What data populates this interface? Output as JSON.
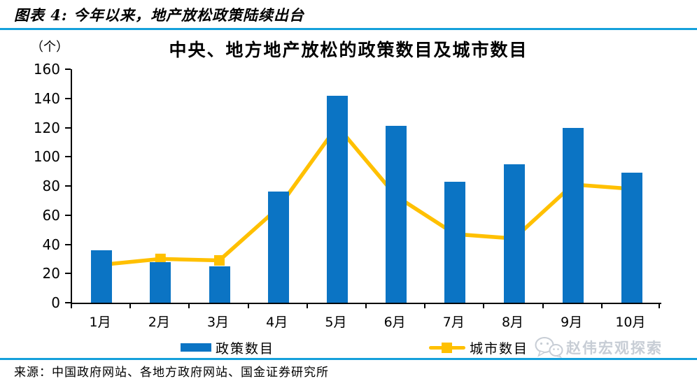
{
  "header": {
    "label": "图表 4: 今年以来，地产放松政策陆续出台"
  },
  "chart_data": {
    "type": "bar",
    "subtype": "bar+line combo",
    "title": "中央、地方地产放松的政策数目及城市数目",
    "unit_label": "（个）",
    "categories": [
      "1月",
      "2月",
      "3月",
      "4月",
      "5月",
      "6月",
      "7月",
      "8月",
      "9月",
      "10月"
    ],
    "series": [
      {
        "name": "政策数目",
        "type": "bar",
        "color": "#0B74C4",
        "values": [
          36,
          28,
          25,
          76,
          142,
          121,
          83,
          95,
          120,
          89
        ]
      },
      {
        "name": "城市数目",
        "type": "line",
        "color": "#FFC000",
        "marker": "square",
        "values": [
          26,
          30,
          29,
          65,
          121,
          73,
          47,
          44,
          81,
          78
        ]
      }
    ],
    "xlabel": "",
    "ylabel": "（个）",
    "ylim": [
      0,
      160
    ],
    "y_ticks": [
      0,
      20,
      40,
      60,
      80,
      100,
      120,
      140,
      160
    ],
    "grid": false,
    "legend_position": "bottom"
  },
  "legend": {
    "bar_label": "政策数目",
    "line_label": "城市数目"
  },
  "watermark": {
    "text": "赵伟宏观探索",
    "icon": "wechat-icon"
  },
  "source": {
    "text": "来源：中国政府网站、各地方政府网站、国金证券研究所"
  },
  "colors": {
    "accent_rule": "#15A0DB",
    "bar": "#0B74C4",
    "line": "#FFC000",
    "axis": "#000000",
    "watermark": "#C7CDD5"
  }
}
